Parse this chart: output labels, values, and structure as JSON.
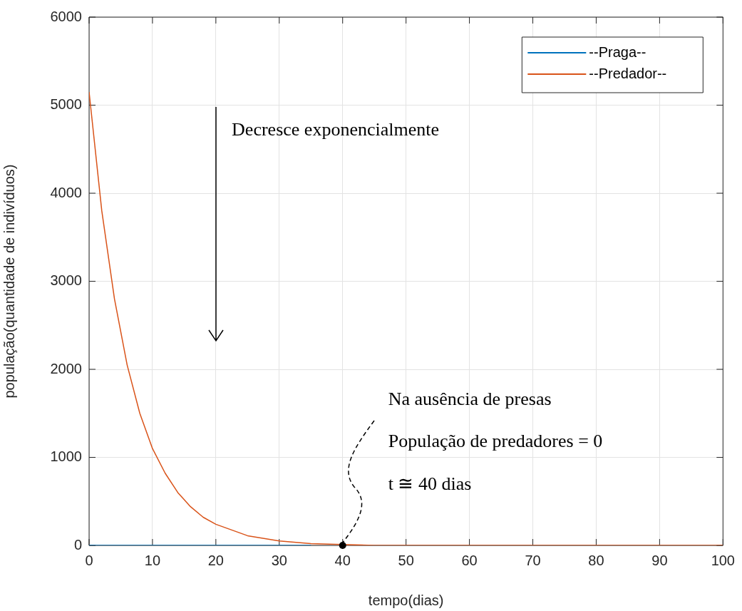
{
  "chart_data": {
    "type": "line",
    "xlabel": "tempo(dias)",
    "ylabel": "população(quantidade de indivíduos)",
    "xlim": [
      0,
      100
    ],
    "ylim": [
      0,
      6000
    ],
    "xticks": [
      0,
      10,
      20,
      30,
      40,
      50,
      60,
      70,
      80,
      90,
      100
    ],
    "yticks": [
      0,
      1000,
      2000,
      3000,
      4000,
      5000,
      6000
    ],
    "grid": true,
    "legend": "top right",
    "marker": "none",
    "line_style": "solid",
    "series": [
      {
        "name": "--Praga--",
        "color": "#0072bd",
        "x": [
          0,
          35
        ],
        "values": [
          0,
          0
        ]
      },
      {
        "name": "--Predador--",
        "color": "#d95319",
        "x": [
          0,
          2,
          4,
          6,
          8,
          10,
          12,
          14,
          16,
          18,
          20,
          25,
          30,
          35,
          40,
          45,
          50,
          60,
          70,
          80,
          90,
          100
        ],
        "values": [
          5150,
          3800,
          2800,
          2050,
          1500,
          1100,
          820,
          600,
          440,
          320,
          240,
          110,
          50,
          20,
          10,
          0,
          0,
          0,
          0,
          0,
          0,
          0
        ]
      }
    ],
    "annotations": [
      "Decresce exponencialmente",
      {
        "text": "Na ausência de presas",
        "x": 40,
        "y": 0
      },
      "População de predadores = 0",
      "t ≅ 40 dias"
    ]
  }
}
